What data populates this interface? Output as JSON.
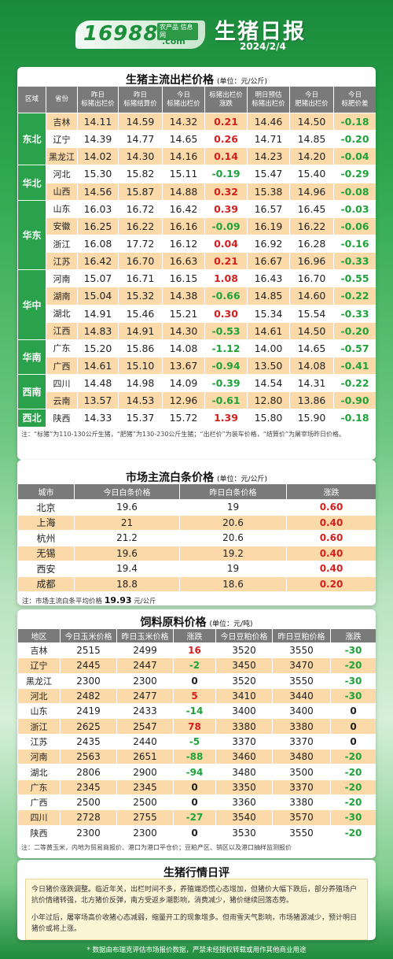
{
  "header": {
    "logo_number": "16988",
    "logo_slogan": "农产品 信息网",
    "logo_com": ".com",
    "title": "生猪日报",
    "date": "2024/2/4"
  },
  "hog": {
    "title": "生猪主流出栏价格",
    "unit": "(单位：元/公斤)",
    "columns": [
      "区域",
      "省份",
      "昨日\n标猪出栏价",
      "昨日\n标猪结算价",
      "今日\n标猪出栏价",
      "标猪出栏价\n涨跌",
      "明日预估\n标猪出栏价",
      "今日\n肥猪出栏价",
      "今日\n标肥价差"
    ],
    "regions": [
      {
        "name": "东北",
        "rows": [
          {
            "prov": "吉林",
            "v": [
              "14.11",
              "14.59",
              "14.32",
              "0.21",
              "14.46",
              "14.50",
              "-0.18"
            ]
          },
          {
            "prov": "辽宁",
            "v": [
              "14.39",
              "14.77",
              "14.65",
              "0.26",
              "14.71",
              "14.85",
              "-0.20"
            ]
          },
          {
            "prov": "黑龙江",
            "v": [
              "14.02",
              "14.30",
              "14.16",
              "0.14",
              "14.23",
              "14.20",
              "-0.04"
            ]
          }
        ]
      },
      {
        "name": "华北",
        "rows": [
          {
            "prov": "河北",
            "v": [
              "15.30",
              "15.82",
              "15.11",
              "-0.19",
              "15.47",
              "15.40",
              "-0.29"
            ]
          },
          {
            "prov": "山西",
            "v": [
              "14.56",
              "15.87",
              "14.88",
              "0.32",
              "15.38",
              "14.96",
              "-0.08"
            ]
          }
        ]
      },
      {
        "name": "华东",
        "rows": [
          {
            "prov": "山东",
            "v": [
              "16.03",
              "16.72",
              "16.42",
              "0.39",
              "16.57",
              "16.45",
              "-0.03"
            ]
          },
          {
            "prov": "安徽",
            "v": [
              "16.25",
              "16.22",
              "16.16",
              "-0.09",
              "16.19",
              "16.22",
              "-0.06"
            ]
          },
          {
            "prov": "浙江",
            "v": [
              "16.08",
              "17.72",
              "16.12",
              "0.04",
              "16.92",
              "16.28",
              "-0.16"
            ]
          },
          {
            "prov": "江苏",
            "v": [
              "16.42",
              "16.70",
              "16.63",
              "0.21",
              "16.67",
              "16.96",
              "-0.33"
            ]
          }
        ]
      },
      {
        "name": "华中",
        "rows": [
          {
            "prov": "河南",
            "v": [
              "15.07",
              "16.71",
              "16.15",
              "1.08",
              "16.43",
              "16.70",
              "-0.55"
            ]
          },
          {
            "prov": "湖南",
            "v": [
              "15.04",
              "15.32",
              "14.38",
              "-0.66",
              "14.85",
              "14.60",
              "-0.22"
            ]
          },
          {
            "prov": "湖北",
            "v": [
              "14.91",
              "15.46",
              "15.21",
              "0.30",
              "15.34",
              "15.54",
              "-0.33"
            ]
          },
          {
            "prov": "江西",
            "v": [
              "14.83",
              "14.91",
              "14.30",
              "-0.53",
              "14.61",
              "14.50",
              "-0.20"
            ]
          }
        ]
      },
      {
        "name": "华南",
        "rows": [
          {
            "prov": "广东",
            "v": [
              "15.20",
              "15.86",
              "14.08",
              "-1.12",
              "14.00",
              "14.65",
              "-0.57"
            ]
          },
          {
            "prov": "广西",
            "v": [
              "14.61",
              "15.10",
              "13.67",
              "-0.94",
              "13.50",
              "14.08",
              "-0.41"
            ]
          }
        ]
      },
      {
        "name": "西南",
        "rows": [
          {
            "prov": "四川",
            "v": [
              "14.48",
              "14.98",
              "14.09",
              "-0.39",
              "14.54",
              "14.31",
              "-0.22"
            ]
          },
          {
            "prov": "云南",
            "v": [
              "13.57",
              "14.53",
              "12.96",
              "-0.61",
              "12.80",
              "13.86",
              "-0.90"
            ]
          }
        ]
      },
      {
        "name": "西北",
        "rows": [
          {
            "prov": "陕西",
            "v": [
              "14.33",
              "15.37",
              "15.72",
              "1.39",
              "15.80",
              "15.90",
              "-0.18"
            ]
          }
        ]
      }
    ],
    "note": "注：“标猪”为110-130公斤生猪，“肥猪”为130-230公斤生猪；“出栏价”为装车价格，“结算价”为屠宰场昨日价格。"
  },
  "pork": {
    "title": "市场主流白条价格",
    "unit": "(单位：元/公斤)",
    "columns": [
      "城市",
      "今日白条价格",
      "昨日白条价格",
      "涨跌"
    ],
    "rows": [
      [
        "北京",
        "19.6",
        "19",
        "0.60"
      ],
      [
        "上海",
        "21",
        "20.6",
        "0.40"
      ],
      [
        "杭州",
        "21.2",
        "20.6",
        "0.60"
      ],
      [
        "无锡",
        "19.6",
        "19.2",
        "0.40"
      ],
      [
        "西安",
        "19.4",
        "19",
        "0.40"
      ],
      [
        "成都",
        "18.8",
        "18.6",
        "0.20"
      ]
    ],
    "avg_label": "注：市场主流白条平均价格",
    "avg_value": "19.93",
    "avg_unit": "元/公斤"
  },
  "feed": {
    "title": "饲料原料价格",
    "unit": "(单位：元/吨)",
    "columns": [
      "地区",
      "今日玉米价格",
      "昨日玉米价格",
      "涨跌",
      "今日豆粕价格",
      "昨日豆粕价格",
      "涨跌"
    ],
    "rows": [
      [
        "吉林",
        "2515",
        "2499",
        "16",
        "3520",
        "3550",
        "-30"
      ],
      [
        "辽宁",
        "2445",
        "2447",
        "-2",
        "3450",
        "3470",
        "-20"
      ],
      [
        "黑龙江",
        "2300",
        "2300",
        "0",
        "3520",
        "3550",
        "-30"
      ],
      [
        "河北",
        "2482",
        "2477",
        "5",
        "3410",
        "3440",
        "-30"
      ],
      [
        "山东",
        "2419",
        "2433",
        "-14",
        "3400",
        "3400",
        "0"
      ],
      [
        "浙江",
        "2625",
        "2547",
        "78",
        "3380",
        "3380",
        "0"
      ],
      [
        "江苏",
        "2435",
        "2440",
        "-5",
        "3370",
        "3370",
        "0"
      ],
      [
        "河南",
        "2563",
        "2651",
        "-88",
        "3460",
        "3480",
        "-20"
      ],
      [
        "湖北",
        "2806",
        "2900",
        "-94",
        "3480",
        "3500",
        "-20"
      ],
      [
        "广东",
        "2345",
        "2345",
        "0",
        "3350",
        "3370",
        "-20"
      ],
      [
        "广西",
        "2500",
        "2500",
        "0",
        "3360",
        "3380",
        "-20"
      ],
      [
        "四川",
        "2728",
        "2755",
        "-27",
        "3540",
        "3570",
        "-30"
      ],
      [
        "陕西",
        "2300",
        "2300",
        "0",
        "3530",
        "3550",
        "-20"
      ]
    ],
    "note": "注：二等黄玉米，内地为贸易商报价、港口为港口平仓价；豆粕产区、销区以及港口抽样监测报价"
  },
  "review": {
    "title": "生猪行情日评",
    "p1": "今日猪价涨跌调整。临近年关，出栏时间不多，养殖端恐慌心态增加，但猪价大幅下跌后，部分养殖场户抗价情绪转强，北方猪价反弹，南方受返乡潮影响，消费减少，猪价继续回落态势。",
    "p2": "小年过后，屠宰场高价收猪心态减弱，缩量开工的现象增多。但雨雪天气影响，市场猪源减少，预计明日猪价或将上涨。"
  },
  "footer": "* 数据由布瑞克评估市场报价数据，严禁未经授权转载或用作其他商业用途",
  "colors": {
    "header_gray": "#7a7a7a",
    "row_orange": "#fbd9a8",
    "region_green": "#2aa24c",
    "rise": "#d41f1f",
    "fall": "#1ea33a"
  }
}
